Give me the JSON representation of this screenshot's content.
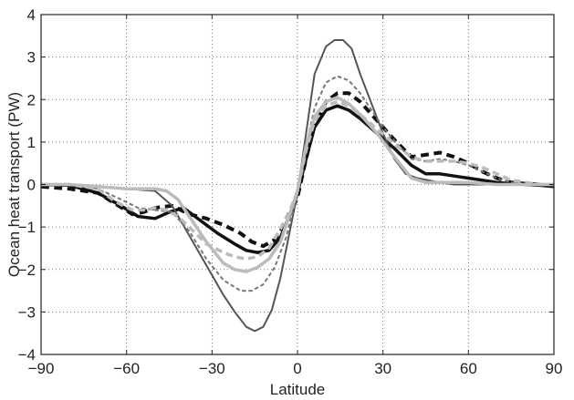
{
  "chart_data": {
    "type": "line",
    "title": "",
    "xlabel": "Latitude",
    "ylabel": "Ocean heat transport (PW)",
    "xlim": [
      -90,
      90
    ],
    "ylim": [
      -4,
      4
    ],
    "xticks": [
      -90,
      -60,
      -30,
      0,
      30,
      60,
      90
    ],
    "yticks": [
      -4,
      -3,
      -2,
      -1,
      0,
      1,
      2,
      3,
      4
    ],
    "xtick_labels": [
      "−90",
      "−60",
      "−30",
      "0",
      "30",
      "60",
      "90"
    ],
    "ytick_labels": [
      "−4",
      "−3",
      "−2",
      "−1",
      "0",
      "1",
      "2",
      "3",
      "4"
    ],
    "grid": true,
    "legend": "none",
    "series": [
      {
        "color": "#111111",
        "style": "solid",
        "width": 3.5,
        "x": [
          -90,
          -80,
          -70,
          -62,
          -56,
          -50,
          -45,
          -40,
          -34,
          -28,
          -22,
          -18,
          -14,
          -10,
          -6,
          -2,
          0,
          3,
          6,
          10,
          14,
          18,
          22,
          28,
          34,
          40,
          45,
          50,
          55,
          60,
          65,
          70,
          75,
          80,
          85,
          90
        ],
        "y": [
          0,
          -0.02,
          -0.2,
          -0.5,
          -0.75,
          -0.8,
          -0.65,
          -0.55,
          -0.85,
          -1.15,
          -1.4,
          -1.55,
          -1.6,
          -1.55,
          -1.25,
          -0.6,
          -0.2,
          0.6,
          1.35,
          1.75,
          1.85,
          1.75,
          1.55,
          1.2,
          0.85,
          0.45,
          0.25,
          0.25,
          0.2,
          0.15,
          0.1,
          0.05,
          0.02,
          0,
          -0.02,
          -0.05
        ]
      },
      {
        "color": "#111111",
        "style": "dashed",
        "width": 4,
        "x": [
          -90,
          -80,
          -70,
          -64,
          -58,
          -54,
          -50,
          -44,
          -38,
          -32,
          -26,
          -20,
          -16,
          -12,
          -8,
          -4,
          0,
          3,
          6,
          10,
          14,
          18,
          22,
          28,
          34,
          40,
          45,
          50,
          55,
          60,
          65,
          70,
          75,
          80,
          85,
          90
        ],
        "y": [
          -0.05,
          -0.1,
          -0.2,
          -0.45,
          -0.7,
          -0.65,
          -0.55,
          -0.5,
          -0.7,
          -0.8,
          -0.95,
          -1.15,
          -1.35,
          -1.45,
          -1.3,
          -0.9,
          -0.3,
          0.6,
          1.4,
          1.95,
          2.15,
          2.15,
          1.95,
          1.5,
          1.05,
          0.65,
          0.7,
          0.75,
          0.65,
          0.5,
          0.3,
          0.15,
          0.05,
          0.02,
          0,
          -0.02
        ]
      },
      {
        "color": "#555555",
        "style": "solid",
        "width": 2,
        "x": [
          -90,
          -80,
          -70,
          -60,
          -50,
          -44,
          -38,
          -32,
          -26,
          -22,
          -18,
          -15,
          -12,
          -9,
          -6,
          -3,
          0,
          3,
          6,
          10,
          13,
          16,
          19,
          22,
          26,
          30,
          34,
          38,
          42,
          46,
          50,
          55,
          60,
          70,
          80,
          90
        ],
        "y": [
          0,
          0,
          -0.05,
          -0.1,
          -0.15,
          -0.5,
          -1.2,
          -1.9,
          -2.6,
          -3.0,
          -3.35,
          -3.45,
          -3.35,
          -2.95,
          -2.2,
          -1.2,
          -0.2,
          1.2,
          2.6,
          3.25,
          3.4,
          3.4,
          3.2,
          2.6,
          1.9,
          1.2,
          0.6,
          0.25,
          0.15,
          0.1,
          0.05,
          0,
          0,
          0,
          0,
          0
        ]
      },
      {
        "color": "#777777",
        "style": "dashed",
        "width": 2,
        "x": [
          -90,
          -80,
          -70,
          -62,
          -56,
          -50,
          -44,
          -38,
          -32,
          -26,
          -20,
          -16,
          -12,
          -8,
          -4,
          0,
          3,
          6,
          10,
          14,
          18,
          22,
          26,
          30,
          35,
          40,
          45,
          50,
          55,
          60,
          65,
          70,
          75,
          80,
          85,
          90
        ],
        "y": [
          0,
          0,
          -0.1,
          -0.35,
          -0.55,
          -0.6,
          -0.65,
          -1.1,
          -1.75,
          -2.25,
          -2.5,
          -2.5,
          -2.35,
          -1.95,
          -1.25,
          -0.2,
          0.9,
          1.8,
          2.4,
          2.55,
          2.45,
          2.15,
          1.75,
          1.35,
          0.95,
          0.6,
          0.55,
          0.6,
          0.55,
          0.45,
          0.3,
          0.15,
          0.05,
          0,
          0,
          0
        ]
      },
      {
        "color": "#bbbbbb",
        "style": "solid",
        "width": 3.5,
        "x": [
          -90,
          -80,
          -70,
          -60,
          -54,
          -50,
          -46,
          -42,
          -38,
          -32,
          -26,
          -22,
          -18,
          -14,
          -10,
          -6,
          -2,
          0,
          3,
          6,
          10,
          14,
          18,
          22,
          28,
          34,
          40,
          45,
          50,
          55,
          60,
          70,
          80,
          90
        ],
        "y": [
          0,
          0,
          -0.05,
          -0.1,
          -0.1,
          -0.1,
          -0.15,
          -0.35,
          -0.75,
          -1.35,
          -1.85,
          -2.0,
          -2.05,
          -1.95,
          -1.75,
          -1.35,
          -0.55,
          -0.15,
          0.9,
          1.6,
          1.95,
          2.05,
          1.9,
          1.65,
          1.2,
          0.65,
          0.15,
          0.05,
          0.05,
          0.05,
          0.05,
          0,
          0,
          0
        ]
      },
      {
        "color": "#bbbbbb",
        "style": "dashed",
        "width": 3.5,
        "x": [
          -90,
          -80,
          -70,
          -64,
          -58,
          -54,
          -50,
          -46,
          -42,
          -38,
          -32,
          -26,
          -22,
          -18,
          -14,
          -10,
          -6,
          -2,
          0,
          3,
          6,
          10,
          14,
          18,
          22,
          28,
          34,
          40,
          45,
          50,
          55,
          60,
          65,
          70,
          75,
          80,
          85,
          90
        ],
        "y": [
          0,
          0,
          -0.1,
          -0.4,
          -0.6,
          -0.6,
          -0.55,
          -0.6,
          -0.75,
          -1.0,
          -1.4,
          -1.6,
          -1.7,
          -1.75,
          -1.7,
          -1.5,
          -1.05,
          -0.5,
          -0.15,
          0.8,
          1.5,
          1.85,
          1.95,
          1.85,
          1.65,
          1.3,
          0.95,
          0.65,
          0.55,
          0.55,
          0.55,
          0.5,
          0.4,
          0.25,
          0.1,
          0.05,
          0,
          0
        ]
      }
    ]
  }
}
